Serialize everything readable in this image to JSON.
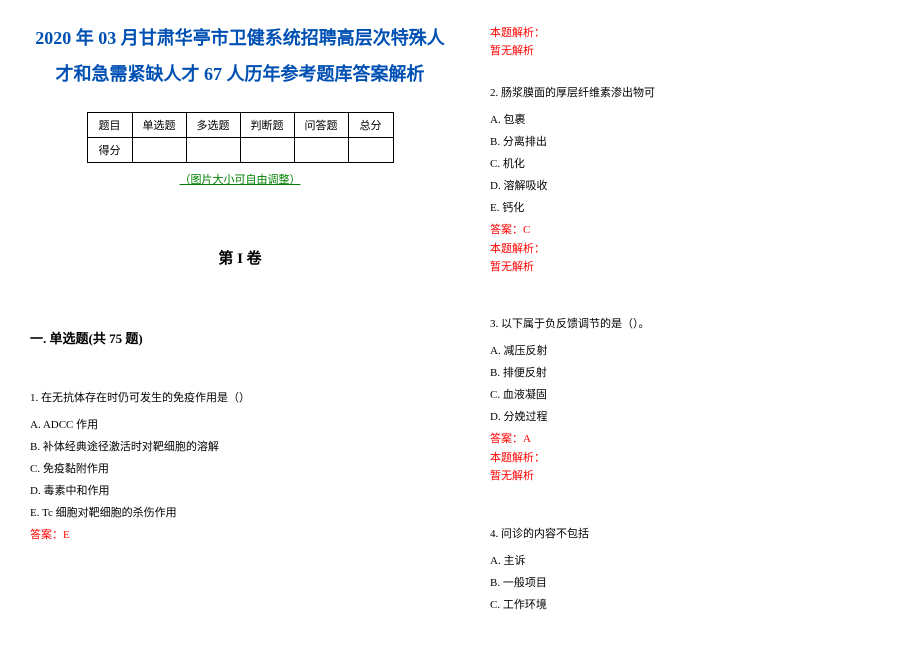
{
  "title": "2020 年 03 月甘肃华亭市卫健系统招聘高层次特殊人才和急需紧缺人才 67 人历年参考题库答案解析",
  "table": {
    "headers": [
      "题目",
      "单选题",
      "多选题",
      "判断题",
      "问答题",
      "总分"
    ],
    "row_label": "得分"
  },
  "link": "（图片大小可自由调整）",
  "section": "第 I 卷",
  "question_type": "一. 单选题(共 75 题)",
  "q1": {
    "stem": "1. 在无抗体存在时仍可发生的免疫作用是（）",
    "a": "A. ADCC 作用",
    "b": "B. 补体经典途径激活时对靶细胞的溶解",
    "c": "C. 免疫黏附作用",
    "d": "D. 毒素中和作用",
    "e": "E. Tc 细胞对靶细胞的杀伤作用",
    "answer": "答案：E"
  },
  "q1_analysis_label": "本题解析：",
  "q1_analysis_none": "暂无解析",
  "q2": {
    "stem": "2. 肠浆膜面的厚层纤维素渗出物可",
    "a": "A. 包裹",
    "b": "B. 分离排出",
    "c": "C. 机化",
    "d": "D. 溶解吸收",
    "e": "E. 钙化",
    "answer": "答案：C"
  },
  "q2_analysis_label": "本题解析：",
  "q2_analysis_none": "暂无解析",
  "q3": {
    "stem": "3. 以下属于负反馈调节的是（）。",
    "a": "A. 减压反射",
    "b": "B. 排便反射",
    "c": "C. 血液凝固",
    "d": "D. 分娩过程",
    "answer": "答案：A"
  },
  "q3_analysis_label": "本题解析：",
  "q3_analysis_none": "暂无解析",
  "q4": {
    "stem": "4. 问诊的内容不包括",
    "a": "A. 主诉",
    "b": "B. 一般项目",
    "c": "C. 工作环境"
  }
}
